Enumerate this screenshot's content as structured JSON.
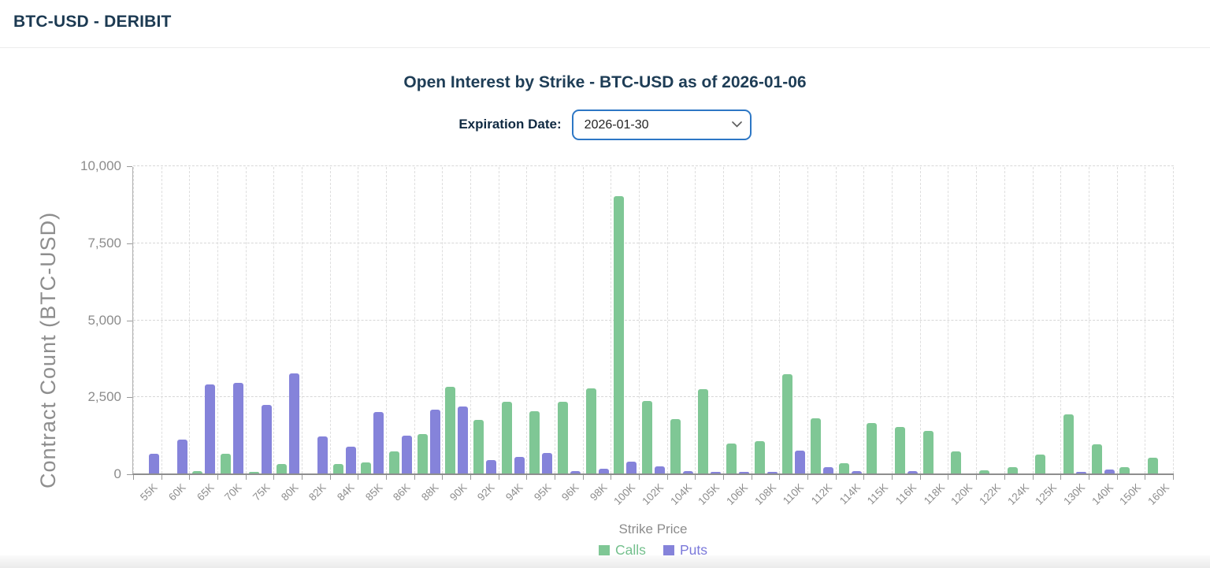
{
  "header": {
    "title": "BTC-USD - DERIBIT"
  },
  "controls": {
    "expiration_label": "Expiration Date:",
    "expiration_value": "2026-01-30"
  },
  "colors": {
    "title_text": "#1e3d56",
    "select_border": "#2d77c5",
    "axis_text": "#8c8c8c",
    "calls": "#7fc795",
    "puts": "#8583da"
  },
  "chart_data": {
    "type": "bar",
    "title": "Open Interest by Strike - BTC-USD as of 2026-01-06",
    "xlabel": "Strike Price",
    "ylabel": "Contract Count (BTC-USD)",
    "ylim": [
      0,
      10000
    ],
    "yticks": [
      0,
      2500,
      5000,
      7500,
      10000
    ],
    "ytick_labels": [
      "0",
      "2,500",
      "5,000",
      "7,500",
      "10,000"
    ],
    "grid": true,
    "legend_position": "bottom",
    "categories": [
      "55K",
      "60K",
      "65K",
      "70K",
      "75K",
      "80K",
      "82K",
      "84K",
      "85K",
      "86K",
      "88K",
      "90K",
      "92K",
      "94K",
      "95K",
      "96K",
      "98K",
      "100K",
      "102K",
      "104K",
      "105K",
      "106K",
      "108K",
      "110K",
      "112K",
      "114K",
      "115K",
      "116K",
      "118K",
      "120K",
      "122K",
      "124K",
      "125K",
      "130K",
      "140K",
      "150K",
      "160K"
    ],
    "series": [
      {
        "name": "Calls",
        "color": "#7fc795",
        "text_color": "#74c08d",
        "values": [
          0,
          0,
          70,
          640,
          30,
          300,
          0,
          300,
          350,
          710,
          1290,
          2820,
          1750,
          2330,
          2010,
          2330,
          2760,
          9000,
          2350,
          1760,
          2730,
          970,
          1060,
          3230,
          1790,
          330,
          1640,
          1520,
          1380,
          720,
          100,
          200,
          620,
          1920,
          940,
          200,
          500
        ]
      },
      {
        "name": "Puts",
        "color": "#8583da",
        "text_color": "#7b79da",
        "values": [
          650,
          1100,
          2900,
          2950,
          2230,
          3250,
          1200,
          880,
          2000,
          1230,
          2080,
          2180,
          440,
          540,
          670,
          80,
          150,
          380,
          230,
          80,
          20,
          30,
          20,
          730,
          200,
          80,
          0,
          80,
          0,
          0,
          0,
          0,
          0,
          40,
          140,
          0,
          0
        ]
      }
    ]
  }
}
